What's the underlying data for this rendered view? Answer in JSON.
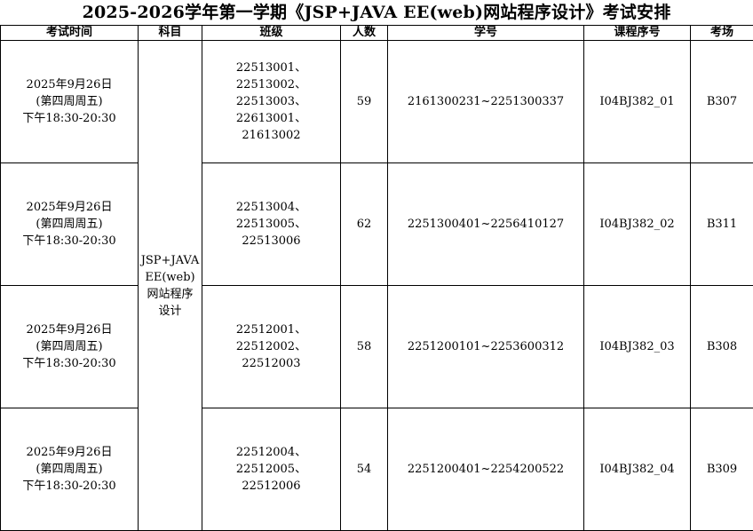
{
  "title": "2025-2026学年第一学期《JSP+JAVA EE(web)网站程序设计》考试安排",
  "headers": [
    "考试时间",
    "科目",
    "班级",
    "人数",
    "学号",
    "课程序号",
    "考场"
  ],
  "subject": [
    "JSP+JAVA",
    "EE(web)",
    "网站程序",
    "设计"
  ],
  "rows": [
    {
      "time": [
        "2025年9月26日",
        "(第四周周五)",
        "下午18:30-20:30"
      ],
      "classes": [
        "22513001、",
        "22513002、",
        "22513003、",
        "22613001、",
        "21613002"
      ],
      "count": "59",
      "ids": "2161300231~2251300337",
      "course": "I04BJ382_01",
      "room": "B307"
    },
    {
      "time": [
        "2025年9月26日",
        "(第四周周五)",
        "下午18:30-20:30"
      ],
      "classes": [
        "22513004、",
        "22513005、",
        "22513006"
      ],
      "count": "62",
      "ids": "2251300401~2256410127",
      "course": "I04BJ382_02",
      "room": "B311"
    },
    {
      "time": [
        "2025年9月26日",
        "(第四周周五)",
        "下午18:30-20:30"
      ],
      "classes": [
        "22512001、",
        "22512002、",
        "22512003"
      ],
      "count": "58",
      "ids": "2251200101~2253600312",
      "course": "I04BJ382_03",
      "room": "B308"
    },
    {
      "time": [
        "2025年9月26日",
        "(第四周周五)",
        "下午18:30-20:30"
      ],
      "classes": [
        "22512004、",
        "22512005、",
        "22512006"
      ],
      "count": "54",
      "ids": "2251200401~2254200522",
      "course": "I04BJ382_04",
      "room": "B309"
    }
  ]
}
